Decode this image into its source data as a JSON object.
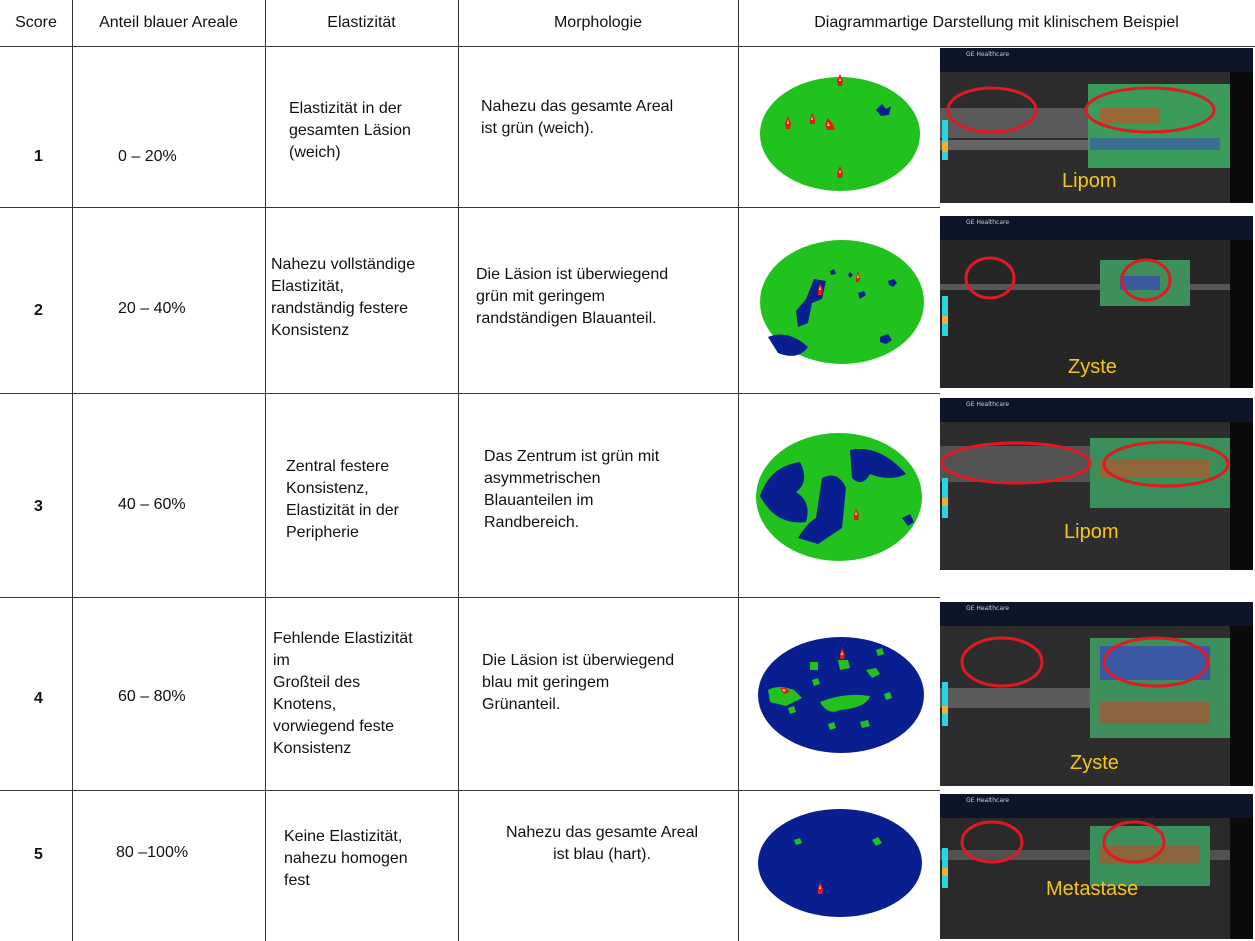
{
  "headers": {
    "score": "Score",
    "anteil": "Anteil blauer Areale",
    "elastizitaet": "Elastizität",
    "morphologie": "Morphologie",
    "diagramm": "Diagrammartige Darstellung mit klinischem Beispiel"
  },
  "rows": [
    {
      "score": "1",
      "anteil": "0 – 20%",
      "elastizitaet": [
        "Elastizität in der",
        "gesamten Läsion",
        "(weich)"
      ],
      "morphologie": [
        "Nahezu das gesamte Areal",
        "ist grün (weich)."
      ],
      "example_label": "Lipom"
    },
    {
      "score": "2",
      "anteil": "20 – 40%",
      "elastizitaet": [
        "Nahezu vollständige",
        "Elastizität,",
        "randständig festere",
        "Konsistenz"
      ],
      "morphologie": [
        "Die Läsion ist überwiegend",
        "grün mit geringem",
        "randständigen Blauanteil."
      ],
      "example_label": "Zyste"
    },
    {
      "score": "3",
      "anteil": "40 – 60%",
      "elastizitaet": [
        "Zentral festere",
        "Konsistenz,",
        "Elastizität in der",
        "Peripherie"
      ],
      "morphologie": [
        "Das Zentrum ist grün mit",
        "asymmetrischen",
        "Blauanteilen im",
        "Randbereich."
      ],
      "example_label": "Lipom"
    },
    {
      "score": "4",
      "anteil": "60 – 80%",
      "elastizitaet": [
        "Fehlende Elastizität",
        "im",
        "Großteil des",
        "Knotens,",
        "vorwiegend feste",
        "Konsistenz"
      ],
      "morphologie": [
        "Die Läsion ist überwiegend",
        "blau mit geringem",
        "Grünanteil."
      ],
      "example_label": "Zyste"
    },
    {
      "score": "5",
      "anteil": "80 –100%",
      "elastizitaet": [
        "Keine Elastizität,",
        "nahezu homogen",
        "fest"
      ],
      "morphologie": [
        "Nahezu das gesamte Areal",
        "ist blau (hart)."
      ],
      "example_label": "Metastase"
    }
  ],
  "colors": {
    "soft": "#22c21e",
    "hard": "#0a1f8f",
    "hot": "#e8161d",
    "circle": "#e01a22",
    "label": "#f7c51a"
  },
  "us_header": {
    "vendor": "GE Healthcare"
  }
}
